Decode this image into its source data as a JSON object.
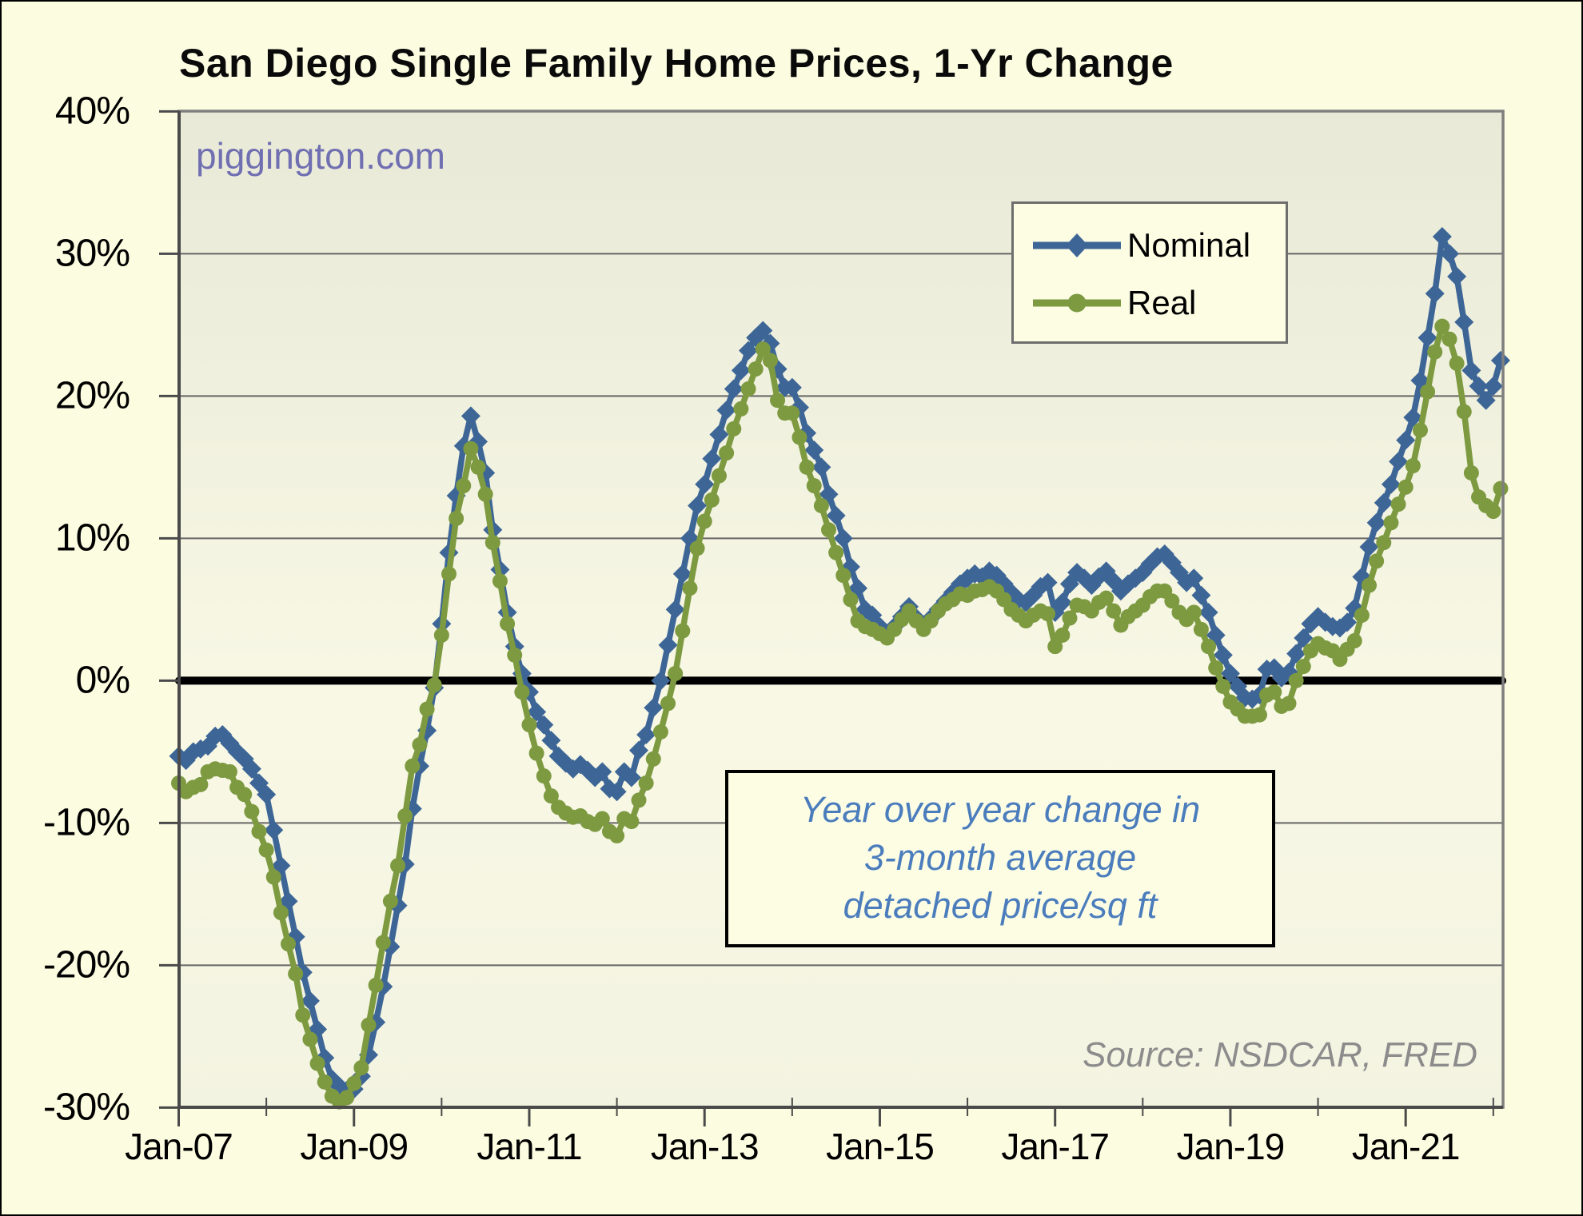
{
  "header": {
    "title": "San Diego Single Family Home Prices, 1-Yr Change"
  },
  "watermark": {
    "text": "piggington.com"
  },
  "source": {
    "text": "Source: NSDCAR, FRED"
  },
  "annotation": {
    "lines": [
      "Year over year change in",
      "3-month average",
      "detached price/sq ft"
    ]
  },
  "colors": {
    "canvas_bg": "#fcfce1",
    "plot_bg_top": "#e9e9d8",
    "plot_bg_bottom": "#f8f8e5",
    "grid": "#666666",
    "axis_dark": "#4a4a4a",
    "axis_light": "#7f7f7f",
    "zero_line": "#000000",
    "nominal": "#3d6697",
    "real": "#7d9a41",
    "annotation_text": "#4b7dbd",
    "watermark_text": "#6f6fb2",
    "source_text": "#8c8c8c"
  },
  "chart_data": {
    "type": "line",
    "title": "San Diego Single Family Home Prices, 1-Yr Change",
    "xlabel": "",
    "ylabel": "",
    "ylim": [
      -30,
      40
    ],
    "grid": "horizontal",
    "zero_line": true,
    "legend_position": "top-right-inside",
    "frequency": "monthly",
    "start_month": "2007-01",
    "end_month": "2022-02",
    "n_points": 182,
    "y_tick_values": [
      40,
      30,
      20,
      10,
      0,
      -10,
      -20,
      -30
    ],
    "y_tick_labels": [
      "40%",
      "30%",
      "20%",
      "10%",
      "0%",
      "-10%",
      "-20%",
      "-30%"
    ],
    "x_tick_labels": [
      "Jan-07",
      "Jan-09",
      "Jan-11",
      "Jan-13",
      "Jan-15",
      "Jan-17",
      "Jan-19",
      "Jan-21"
    ],
    "x_major_tick_month_indices": [
      0,
      24,
      48,
      72,
      96,
      120,
      144,
      168
    ],
    "x_minor_tick_month_indices": [
      12,
      36,
      60,
      84,
      108,
      132,
      156,
      180
    ],
    "series": [
      {
        "name": "Nominal",
        "marker": "diamond",
        "color": "#3d6697",
        "values": [
          -5.3,
          -5.6,
          -5.0,
          -4.8,
          -4.6,
          -3.9,
          -3.8,
          -4.4,
          -5.0,
          -5.5,
          -6.2,
          -7.2,
          -8.0,
          -10.5,
          -13.0,
          -15.5,
          -18.0,
          -20.5,
          -22.5,
          -24.5,
          -26.5,
          -28.0,
          -28.5,
          -28.8,
          -28.7,
          -27.8,
          -26.3,
          -24.0,
          -21.5,
          -18.7,
          -15.8,
          -12.9,
          -9.0,
          -6.0,
          -3.5,
          -0.5,
          4.0,
          9.0,
          13.0,
          16.5,
          18.6,
          16.8,
          14.6,
          10.6,
          7.8,
          4.8,
          2.4,
          0.5,
          -0.8,
          -2.2,
          -3.1,
          -4.2,
          -5.3,
          -5.8,
          -6.2,
          -5.9,
          -6.3,
          -6.8,
          -6.4,
          -7.6,
          -7.8,
          -6.4,
          -6.8,
          -4.9,
          -3.8,
          -1.9,
          0.0,
          2.5,
          5.0,
          7.5,
          10.0,
          12.3,
          13.8,
          15.6,
          17.3,
          19.0,
          20.5,
          21.8,
          23.2,
          24.1,
          24.6,
          23.7,
          21.9,
          20.6,
          20.6,
          19.2,
          17.4,
          16.2,
          15.0,
          13.1,
          11.6,
          10.0,
          8.0,
          6.5,
          5.0,
          4.6,
          3.8,
          3.3,
          3.8,
          4.5,
          5.2,
          4.4,
          3.8,
          4.4,
          5.0,
          5.6,
          6.2,
          6.8,
          7.2,
          7.5,
          7.3,
          7.7,
          7.4,
          6.8,
          6.2,
          5.7,
          5.5,
          6.0,
          6.6,
          6.9,
          4.8,
          5.5,
          6.8,
          7.6,
          7.2,
          6.7,
          7.3,
          7.7,
          7.0,
          6.3,
          6.8,
          7.2,
          7.6,
          8.2,
          8.7,
          8.9,
          8.3,
          7.6,
          6.9,
          7.2,
          6.0,
          4.8,
          3.2,
          1.8,
          0.5,
          -0.4,
          -1.2,
          -1.3,
          -1.0,
          0.8,
          0.9,
          0.2,
          0.6,
          1.9,
          3.0,
          4.0,
          4.5,
          4.1,
          3.8,
          3.7,
          4.1,
          5.1,
          7.3,
          9.4,
          11.1,
          12.5,
          13.8,
          15.4,
          16.9,
          18.5,
          21.1,
          24.1,
          27.2,
          31.2,
          30.0,
          28.4,
          25.2,
          21.8,
          20.7,
          19.7,
          20.7,
          22.5
        ]
      },
      {
        "name": "Real",
        "marker": "circle",
        "color": "#7d9a41",
        "values": [
          -7.2,
          -7.8,
          -7.5,
          -7.3,
          -6.4,
          -6.2,
          -6.3,
          -6.4,
          -7.5,
          -8.0,
          -9.2,
          -10.6,
          -11.9,
          -13.8,
          -16.3,
          -18.5,
          -20.6,
          -23.5,
          -25.2,
          -26.9,
          -28.2,
          -29.2,
          -29.6,
          -29.3,
          -28.3,
          -27.2,
          -24.2,
          -21.4,
          -18.4,
          -15.5,
          -13.0,
          -9.5,
          -6.0,
          -4.5,
          -2.0,
          -0.3,
          3.2,
          7.5,
          11.4,
          13.7,
          16.3,
          15.0,
          13.1,
          9.7,
          7.0,
          4.0,
          1.8,
          -0.8,
          -3.1,
          -5.1,
          -6.7,
          -8.1,
          -8.9,
          -9.3,
          -9.6,
          -9.5,
          -9.9,
          -10.1,
          -9.7,
          -10.6,
          -10.9,
          -9.7,
          -9.9,
          -8.4,
          -7.2,
          -5.5,
          -3.6,
          -1.6,
          0.5,
          3.5,
          6.5,
          9.3,
          11.2,
          12.7,
          14.4,
          16.0,
          17.7,
          19.1,
          20.5,
          21.9,
          23.3,
          22.5,
          19.7,
          18.8,
          18.8,
          17.1,
          15.0,
          13.7,
          12.3,
          10.6,
          9.0,
          7.4,
          5.7,
          4.2,
          3.8,
          3.6,
          3.3,
          3.0,
          3.6,
          4.3,
          4.9,
          4.2,
          3.6,
          4.2,
          4.9,
          5.4,
          5.7,
          6.1,
          6.0,
          6.3,
          6.4,
          6.6,
          6.3,
          5.7,
          5.0,
          4.6,
          4.2,
          4.6,
          4.9,
          4.7,
          2.4,
          3.2,
          4.4,
          5.3,
          5.2,
          4.9,
          5.5,
          5.8,
          4.9,
          3.9,
          4.5,
          4.9,
          5.3,
          5.9,
          6.3,
          6.3,
          5.6,
          4.8,
          4.3,
          4.8,
          3.6,
          2.4,
          0.9,
          -0.4,
          -1.5,
          -2.0,
          -2.5,
          -2.5,
          -2.4,
          -1.0,
          -0.8,
          -1.8,
          -1.6,
          0.0,
          1.0,
          2.1,
          2.6,
          2.3,
          2.1,
          1.5,
          2.2,
          2.8,
          4.6,
          6.7,
          8.4,
          9.7,
          11.1,
          12.4,
          13.6,
          15.1,
          17.6,
          20.3,
          23.1,
          24.9,
          24.0,
          22.3,
          18.9,
          14.6,
          12.9,
          12.3,
          11.9,
          13.5
        ]
      }
    ]
  }
}
